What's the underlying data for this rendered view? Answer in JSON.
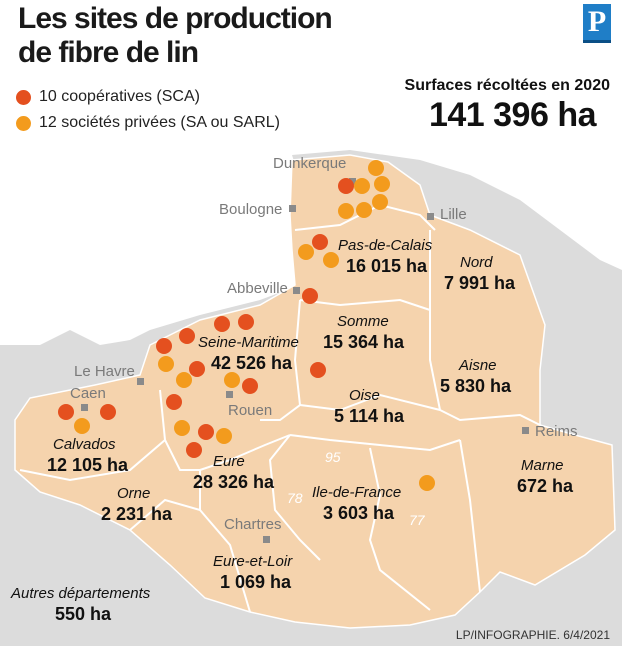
{
  "header": {
    "title_line1": "Les sites de production",
    "title_line2": "de fibre de lin",
    "logo_letter": "P"
  },
  "legend": [
    {
      "label": "10 coopératives (SCA)",
      "color": "#e4501f"
    },
    {
      "label": "12 sociétés privées (SA ou SARL)",
      "color": "#f39b1d"
    }
  ],
  "summary": {
    "label": "Surfaces récoltées en 2020",
    "total": "141 396 ha"
  },
  "regions": [
    {
      "name": "Pas-de-Calais",
      "value": "16 015 ha"
    },
    {
      "name": "Nord",
      "value": "7 991 ha"
    },
    {
      "name": "Somme",
      "value": "15 364 ha"
    },
    {
      "name": "Seine-Maritime",
      "value": "42 526 ha"
    },
    {
      "name": "Aisne",
      "value": "5 830 ha"
    },
    {
      "name": "Oise",
      "value": "5 114 ha"
    },
    {
      "name": "Calvados",
      "value": "12 105 ha"
    },
    {
      "name": "Eure",
      "value": "28 326 ha"
    },
    {
      "name": "Marne",
      "value": "672 ha"
    },
    {
      "name": "Ile-de-France",
      "value": "3 603 ha"
    },
    {
      "name": "Orne",
      "value": "2 231 ha"
    },
    {
      "name": "Eure-et-Loir",
      "value": "1 069 ha"
    },
    {
      "name": "Autres départements",
      "value": "550 ha"
    }
  ],
  "cities": [
    "Dunkerque",
    "Boulogne",
    "Lille",
    "Abbeville",
    "Le Havre",
    "Caen",
    "Rouen",
    "Reims",
    "Chartres"
  ],
  "dept_numbers": [
    "95",
    "78",
    "77"
  ],
  "credit": "LP/INFOGRAPHIE. 6/4/2021",
  "colors": {
    "region_fill": "#f5d3ad",
    "background_land": "#dcdcdc",
    "cooperative": "#e4501f",
    "private": "#f39b1d"
  }
}
